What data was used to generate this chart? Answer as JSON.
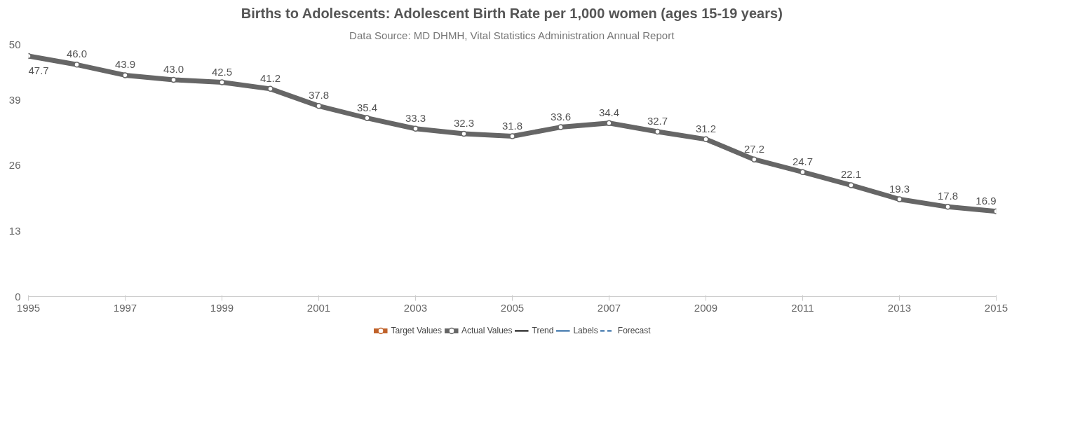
{
  "chart_data": {
    "type": "line",
    "title": "Births to Adolescents: Adolescent Birth Rate per 1,000 women (ages 15-19 years)",
    "subtitle": "Data Source: MD DHMH, Vital Statistics Administration Annual Report",
    "x": [
      1995,
      1996,
      1997,
      1998,
      1999,
      2000,
      2001,
      2002,
      2003,
      2004,
      2005,
      2006,
      2007,
      2008,
      2009,
      2010,
      2011,
      2012,
      2013,
      2014,
      2015
    ],
    "series": [
      {
        "name": "Target Values",
        "color": "#c0622a",
        "marker": "circle",
        "values": [
          null,
          null,
          null,
          null,
          null,
          null,
          null,
          null,
          null,
          null,
          null,
          null,
          null,
          null,
          null,
          null,
          null,
          null,
          null,
          null,
          null
        ]
      },
      {
        "name": "Actual Values",
        "color": "#666666",
        "marker": "circle",
        "values": [
          47.7,
          46.0,
          43.9,
          43.0,
          42.5,
          41.2,
          37.8,
          35.4,
          33.3,
          32.3,
          31.8,
          33.6,
          34.4,
          32.7,
          31.2,
          27.2,
          24.7,
          22.1,
          19.3,
          17.8,
          16.9
        ],
        "value_labels": [
          "47.7",
          "46.0",
          "43.9",
          "43.0",
          "42.5",
          "41.2",
          "37.8",
          "35.4",
          "33.3",
          "32.3",
          "31.8",
          "33.6",
          "34.4",
          "32.7",
          "31.2",
          "27.2",
          "24.7",
          "22.1",
          "19.3",
          "17.8",
          "16.9"
        ]
      },
      {
        "name": "Trend",
        "color": "#000000",
        "marker": "none",
        "values": [
          null,
          null,
          null,
          null,
          null,
          null,
          null,
          null,
          null,
          null,
          null,
          null,
          null,
          null,
          null,
          null,
          null,
          null,
          null,
          null,
          null
        ]
      },
      {
        "name": "Labels",
        "color": "#1f5f9e",
        "marker": "none",
        "values": [
          null,
          null,
          null,
          null,
          null,
          null,
          null,
          null,
          null,
          null,
          null,
          null,
          null,
          null,
          null,
          null,
          null,
          null,
          null,
          null,
          null
        ]
      },
      {
        "name": "Forecast",
        "color": "#1f5f9e",
        "marker": "none",
        "line_style": "dashed",
        "values": [
          null,
          null,
          null,
          null,
          null,
          null,
          null,
          null,
          null,
          null,
          null,
          null,
          null,
          null,
          null,
          null,
          null,
          null,
          null,
          null,
          null
        ]
      }
    ],
    "xlim": [
      1995,
      2015
    ],
    "xticks": [
      1995,
      1997,
      1999,
      2001,
      2003,
      2005,
      2007,
      2009,
      2011,
      2013,
      2015
    ],
    "ylim": [
      0,
      50
    ],
    "yticks": [
      0,
      13,
      26,
      39,
      50
    ],
    "grid": false,
    "legend": "bottom"
  }
}
